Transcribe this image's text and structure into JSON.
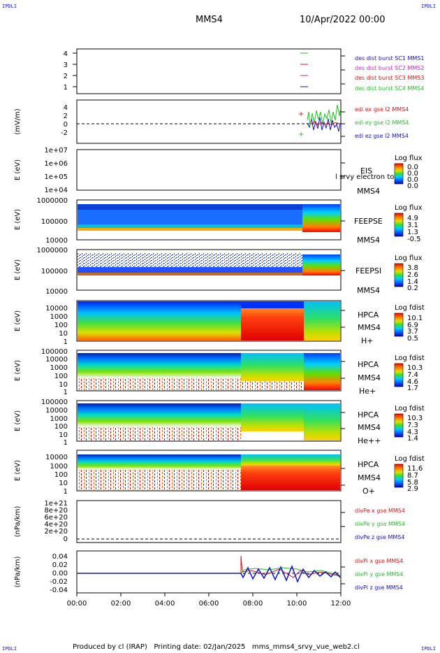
{
  "corner_label": "IPDLI",
  "header": {
    "spacecraft": "MMS4",
    "datetime": "10/Apr/2022 00:00"
  },
  "footer": {
    "text": "Produced by cl (IRAP)   Printing date: 02/Jan/2025   mms_mms4_srvy_vue_web2.cl"
  },
  "colors": {
    "red": "#e01010",
    "green": "#20c020",
    "blue": "#1010cc",
    "magenta": "#d020d0"
  },
  "x_axis": {
    "ticks": [
      "00:00",
      "02:00",
      "04:00",
      "06:00",
      "08:00",
      "10:00",
      "12:00"
    ]
  },
  "panels": [
    {
      "id": "dist",
      "ylabel": "",
      "yticks": [
        "4",
        "3",
        "2",
        "1"
      ],
      "legend": [
        {
          "text": "des dist burst SC1 MMS1",
          "color": "#1010cc"
        },
        {
          "text": "des dist burst SC2 MMS2",
          "color": "#d020d0"
        },
        {
          "text": "des dist burst SC3 MMS3",
          "color": "#e01010"
        },
        {
          "text": "des dist burst SC4 MMS4",
          "color": "#20c020"
        }
      ]
    },
    {
      "id": "edi",
      "ylabel": "(mV/m)",
      "yticks": [
        "4",
        "2",
        "0",
        "-2"
      ],
      "legend": [
        {
          "text": "edi ex gse l2 MMS4",
          "color": "#e01010"
        },
        {
          "text": "edi ey gse l2 MMS4",
          "color": "#20c020"
        },
        {
          "text": "edi ez gse l2 MMS4",
          "color": "#1010cc"
        }
      ]
    },
    {
      "id": "eis",
      "ylabel": "E (eV)",
      "yticks": [
        "1e+07",
        "1e+06",
        "1e+05",
        "1e+04"
      ],
      "instrument": [
        "EIS",
        "MMS4"
      ],
      "overlay": "l srvy electron to",
      "cbar": {
        "title": "Log flux",
        "ticks": [
          "0.0",
          "0.0",
          "0.0",
          "0.0"
        ]
      }
    },
    {
      "id": "feepse",
      "ylabel": "E (eV)",
      "yticks": [
        "1000000",
        "100000",
        "10000"
      ],
      "instrument": [
        "FEEPSE",
        "MMS4"
      ],
      "cbar": {
        "title": "Log flux",
        "ticks": [
          "4.9",
          "3.1",
          "1.3",
          "-0.5"
        ]
      }
    },
    {
      "id": "feepsi",
      "ylabel": "E (eV)",
      "yticks": [
        "1000000",
        "100000",
        "10000"
      ],
      "instrument": [
        "FEEPSI",
        "MMS4"
      ],
      "cbar": {
        "title": "Log flux",
        "ticks": [
          "3.8",
          "2.6",
          "1.4",
          "0.2"
        ]
      }
    },
    {
      "id": "hpca_h",
      "ylabel": "E (eV)",
      "yticks": [
        "10000",
        "1000",
        "100",
        "10",
        "1"
      ],
      "instrument": [
        "HPCA",
        "MMS4",
        "H+"
      ],
      "cbar": {
        "title": "Log fdist",
        "ticks": [
          "10.1",
          "6.9",
          "3.7",
          "0.5"
        ]
      }
    },
    {
      "id": "hpca_he",
      "ylabel": "E (eV)",
      "yticks": [
        "100000",
        "10000",
        "1000",
        "100",
        "10",
        "1"
      ],
      "instrument": [
        "HPCA",
        "MMS4",
        "He+"
      ],
      "cbar": {
        "title": "Log fdist",
        "ticks": [
          "10.3",
          "7.4",
          "4.6",
          "1.7"
        ]
      }
    },
    {
      "id": "hpca_hepp",
      "ylabel": "E (eV)",
      "yticks": [
        "100000",
        "10000",
        "1000",
        "100",
        "10",
        "1"
      ],
      "instrument": [
        "HPCA",
        "MMS4",
        "He++"
      ],
      "cbar": {
        "title": "Log fdist",
        "ticks": [
          "10.3",
          "7.3",
          "4.3",
          "1.4"
        ]
      }
    },
    {
      "id": "hpca_o",
      "ylabel": "E (eV)",
      "yticks": [
        "10000",
        "1000",
        "100",
        "10",
        "1"
      ],
      "instrument": [
        "HPCA",
        "MMS4",
        "O+"
      ],
      "cbar": {
        "title": "Log fdist",
        "ticks": [
          "11.6",
          "8.7",
          "5.8",
          "2.9"
        ]
      }
    },
    {
      "id": "divpe",
      "ylabel": "(nPa/km)",
      "yticks": [
        "1e+21",
        "8e+20",
        "6e+20",
        "4e+20",
        "2e+20",
        "0"
      ],
      "legend": [
        {
          "text": "divPe x gse MMS4",
          "color": "#e01010"
        },
        {
          "text": "divPe y gse MMS4",
          "color": "#20c020"
        },
        {
          "text": "divPe z gse MMS4",
          "color": "#1010cc"
        }
      ]
    },
    {
      "id": "divpi",
      "ylabel": "(nPa/km)",
      "yticks": [
        "0.04",
        "0.02",
        "0.00",
        "-0.02",
        "-0.04"
      ],
      "legend": [
        {
          "text": "divPi x gse MMS4",
          "color": "#e01010"
        },
        {
          "text": "divPi y gse MMS4",
          "color": "#20c020"
        },
        {
          "text": "divPi z gse MMS4",
          "color": "#1010cc"
        }
      ]
    }
  ],
  "chart_data": [
    {
      "type": "line",
      "title": "des dist burst",
      "xlim": [
        "00:00",
        "12:00"
      ],
      "ylim": [
        0.5,
        4.5
      ],
      "series": [
        {
          "name": "des dist burst SC1 MMS1",
          "x": [
            "10:20",
            "10:40"
          ],
          "values": [
            1,
            1
          ]
        },
        {
          "name": "des dist burst SC2 MMS2",
          "x": [
            "10:20",
            "10:40"
          ],
          "values": [
            2,
            2
          ]
        },
        {
          "name": "des dist burst SC3 MMS3",
          "x": [
            "10:20",
            "10:40"
          ],
          "values": [
            3,
            3
          ]
        },
        {
          "name": "des dist burst SC4 MMS4",
          "x": [
            "10:20",
            "10:40"
          ],
          "values": [
            4,
            4
          ]
        }
      ]
    },
    {
      "type": "line",
      "ylabel": "(mV/m)",
      "xlim": [
        "00:00",
        "12:00"
      ],
      "ylim": [
        -3.5,
        5
      ],
      "series": [
        {
          "name": "edi ex gse l2 MMS4",
          "x": [
            "10:15"
          ],
          "values": [
            2.5
          ]
        },
        {
          "name": "edi ey gse l2 MMS4",
          "x": [
            "10:15",
            "10:40",
            "11:00",
            "11:20",
            "11:40",
            "11:55"
          ],
          "values": [
            -2.8,
            1.5,
            2.0,
            1.0,
            2.5,
            3.5
          ]
        },
        {
          "name": "edi ez gse l2 MMS4",
          "x": [
            "10:40",
            "11:00",
            "11:20",
            "11:40",
            "11:55"
          ],
          "values": [
            -0.5,
            -1.0,
            -0.8,
            -1.5,
            -1.0
          ]
        }
      ]
    },
    {
      "type": "heatmap",
      "ylabel": "E (eV)",
      "instrument": "EIS",
      "yscale": "log",
      "ylim": [
        10000,
        10000000
      ]
    },
    {
      "type": "heatmap",
      "ylabel": "E (eV)",
      "instrument": "FEEPSE",
      "yscale": "log",
      "ylim": [
        10000,
        1000000
      ]
    },
    {
      "type": "heatmap",
      "ylabel": "E (eV)",
      "instrument": "FEEPSI",
      "yscale": "log",
      "ylim": [
        10000,
        1000000
      ]
    },
    {
      "type": "heatmap",
      "ylabel": "E (eV)",
      "instrument": "HPCA H+",
      "yscale": "log",
      "ylim": [
        1,
        20000
      ]
    },
    {
      "type": "heatmap",
      "ylabel": "E (eV)",
      "instrument": "HPCA He+",
      "yscale": "log",
      "ylim": [
        1,
        100000
      ]
    },
    {
      "type": "heatmap",
      "ylabel": "E (eV)",
      "instrument": "HPCA He++",
      "yscale": "log",
      "ylim": [
        1,
        100000
      ]
    },
    {
      "type": "heatmap",
      "ylabel": "E (eV)",
      "instrument": "HPCA O+",
      "yscale": "log",
      "ylim": [
        1,
        20000
      ]
    },
    {
      "type": "line",
      "ylabel": "(nPa/km)",
      "ylim": [
        0,
        1e+21
      ],
      "series": []
    },
    {
      "type": "line",
      "ylabel": "(nPa/km)",
      "ylim": [
        -0.045,
        0.045
      ],
      "series": [
        {
          "name": "divPi x gse MMS4",
          "x": [
            "00:00",
            "07:30",
            "07:30",
            "09:00",
            "10:00",
            "11:00",
            "12:00"
          ],
          "values": [
            0.0,
            0.0,
            0.04,
            0.01,
            -0.01,
            0.005,
            0.0
          ]
        },
        {
          "name": "divPi y gse MMS4",
          "x": [
            "00:00",
            "07:30",
            "09:00",
            "10:00",
            "11:00",
            "12:00"
          ],
          "values": [
            0.0,
            0.005,
            0.008,
            0.01,
            0.005,
            0.002
          ]
        },
        {
          "name": "divPi z gse MMS4",
          "x": [
            "00:00",
            "07:30",
            "09:00",
            "10:00",
            "11:00",
            "12:00"
          ],
          "values": [
            0.0,
            -0.005,
            -0.008,
            -0.015,
            -0.004,
            -0.003
          ]
        }
      ]
    }
  ]
}
